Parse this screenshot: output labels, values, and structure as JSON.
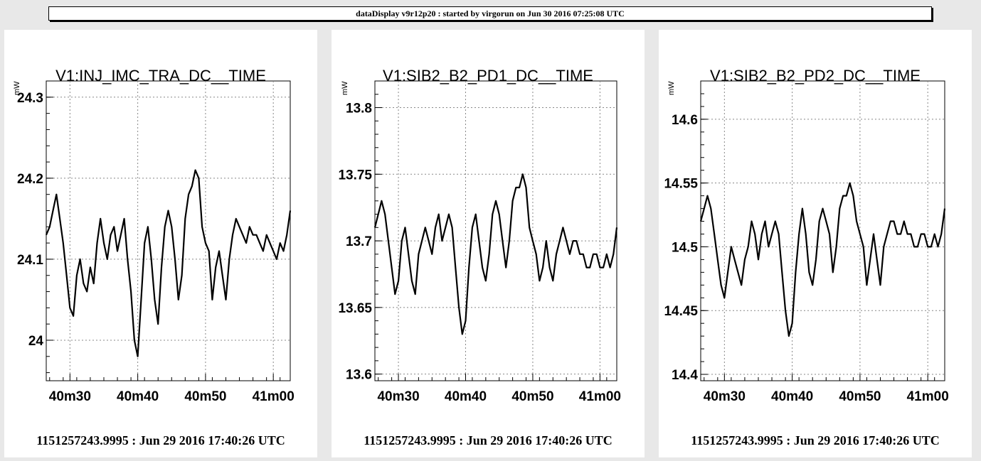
{
  "header": {
    "title": "dataDisplay v9r12p20 : started by virgorun on Jun 30 2016 07:25:08 UTC"
  },
  "chart_data": [
    {
      "type": "line",
      "title": "V1:INJ_IMC_TRA_DC__TIME",
      "ylabel": "mW",
      "footer": "1151257243.9995 : Jun 29 2016 17:40:26 UTC",
      "x_ticks": [
        "40m30",
        "40m40",
        "40m50",
        "41m00"
      ],
      "x_tick_seconds": [
        30,
        40,
        50,
        60
      ],
      "xlim": [
        26.5,
        62.5
      ],
      "y_ticks": [
        "24",
        "24.1",
        "24.2",
        "24.3"
      ],
      "y_tick_values": [
        24.0,
        24.1,
        24.2,
        24.3
      ],
      "ylim": [
        23.95,
        24.32
      ],
      "grid": true,
      "series": [
        {
          "x": [
            26.5,
            27.0,
            27.5,
            28.0,
            28.5,
            29.0,
            29.5,
            30.0,
            30.5,
            31.0,
            31.5,
            32.0,
            32.5,
            33.0,
            33.5,
            34.0,
            34.5,
            35.0,
            35.5,
            36.0,
            36.5,
            37.0,
            37.5,
            38.0,
            38.5,
            39.0,
            39.5,
            40.0,
            40.5,
            41.0,
            41.5,
            42.0,
            42.5,
            43.0,
            43.5,
            44.0,
            44.5,
            45.0,
            45.5,
            46.0,
            46.5,
            47.0,
            47.5,
            48.0,
            48.5,
            49.0,
            49.5,
            50.0,
            50.5,
            51.0,
            51.5,
            52.0,
            52.5,
            53.0,
            53.5,
            54.0,
            54.5,
            55.0,
            55.5,
            56.0,
            56.5,
            57.0,
            57.5,
            58.0,
            58.5,
            59.0,
            59.5,
            60.0,
            60.5,
            61.0,
            61.5,
            62.0,
            62.5
          ],
          "y": [
            24.13,
            24.14,
            24.16,
            24.18,
            24.15,
            24.12,
            24.08,
            24.04,
            24.03,
            24.08,
            24.1,
            24.07,
            24.06,
            24.09,
            24.07,
            24.12,
            24.15,
            24.12,
            24.1,
            24.13,
            24.14,
            24.11,
            24.13,
            24.15,
            24.1,
            24.06,
            24.0,
            23.98,
            24.05,
            24.12,
            24.14,
            24.1,
            24.05,
            24.02,
            24.09,
            24.14,
            24.16,
            24.14,
            24.1,
            24.05,
            24.08,
            24.15,
            24.18,
            24.19,
            24.21,
            24.2,
            24.14,
            24.12,
            24.11,
            24.05,
            24.09,
            24.11,
            24.08,
            24.05,
            24.1,
            24.13,
            24.15,
            24.14,
            24.13,
            24.12,
            24.14,
            24.13,
            24.13,
            24.12,
            24.11,
            24.13,
            24.12,
            24.11,
            24.1,
            24.12,
            24.11,
            24.13,
            24.16
          ]
        }
      ]
    },
    {
      "type": "line",
      "title": "V1:SIB2_B2_PD1_DC__TIME",
      "ylabel": "mW",
      "footer": "1151257243.9995 : Jun 29 2016 17:40:26 UTC",
      "x_ticks": [
        "40m30",
        "40m40",
        "40m50",
        "41m00"
      ],
      "x_tick_seconds": [
        30,
        40,
        50,
        60
      ],
      "xlim": [
        26.5,
        62.5
      ],
      "y_ticks": [
        "13.6",
        "13.65",
        "13.7",
        "13.75",
        "13.8"
      ],
      "y_tick_values": [
        13.6,
        13.65,
        13.7,
        13.75,
        13.8
      ],
      "ylim": [
        13.595,
        13.82
      ],
      "grid": true,
      "series": [
        {
          "x": [
            26.5,
            27.0,
            27.5,
            28.0,
            28.5,
            29.0,
            29.5,
            30.0,
            30.5,
            31.0,
            31.5,
            32.0,
            32.5,
            33.0,
            33.5,
            34.0,
            34.5,
            35.0,
            35.5,
            36.0,
            36.5,
            37.0,
            37.5,
            38.0,
            38.5,
            39.0,
            39.5,
            40.0,
            40.5,
            41.0,
            41.5,
            42.0,
            42.5,
            43.0,
            43.5,
            44.0,
            44.5,
            45.0,
            45.5,
            46.0,
            46.5,
            47.0,
            47.5,
            48.0,
            48.5,
            49.0,
            49.5,
            50.0,
            50.5,
            51.0,
            51.5,
            52.0,
            52.5,
            53.0,
            53.5,
            54.0,
            54.5,
            55.0,
            55.5,
            56.0,
            56.5,
            57.0,
            57.5,
            58.0,
            58.5,
            59.0,
            59.5,
            60.0,
            60.5,
            61.0,
            61.5,
            62.0,
            62.5
          ],
          "y": [
            13.71,
            13.72,
            13.73,
            13.72,
            13.7,
            13.68,
            13.66,
            13.67,
            13.7,
            13.71,
            13.69,
            13.67,
            13.66,
            13.69,
            13.7,
            13.71,
            13.7,
            13.69,
            13.71,
            13.72,
            13.7,
            13.71,
            13.72,
            13.71,
            13.68,
            13.65,
            13.63,
            13.64,
            13.68,
            13.71,
            13.72,
            13.7,
            13.68,
            13.67,
            13.69,
            13.72,
            13.73,
            13.72,
            13.7,
            13.68,
            13.7,
            13.73,
            13.74,
            13.74,
            13.75,
            13.74,
            13.71,
            13.7,
            13.69,
            13.67,
            13.68,
            13.7,
            13.68,
            13.67,
            13.69,
            13.7,
            13.71,
            13.7,
            13.69,
            13.7,
            13.7,
            13.69,
            13.69,
            13.68,
            13.68,
            13.69,
            13.69,
            13.68,
            13.68,
            13.69,
            13.68,
            13.69,
            13.71
          ]
        }
      ]
    },
    {
      "type": "line",
      "title": "V1:SIB2_B2_PD2_DC__TIME",
      "ylabel": "mW",
      "footer": "1151257243.9995 : Jun 29 2016 17:40:26 UTC",
      "x_ticks": [
        "40m30",
        "40m40",
        "40m50",
        "41m00"
      ],
      "x_tick_seconds": [
        30,
        40,
        50,
        60
      ],
      "xlim": [
        26.5,
        62.5
      ],
      "y_ticks": [
        "14.4",
        "14.45",
        "14.5",
        "14.55",
        "14.6"
      ],
      "y_tick_values": [
        14.4,
        14.45,
        14.5,
        14.55,
        14.6
      ],
      "ylim": [
        14.395,
        14.63
      ],
      "grid": true,
      "series": [
        {
          "x": [
            26.5,
            27.0,
            27.5,
            28.0,
            28.5,
            29.0,
            29.5,
            30.0,
            30.5,
            31.0,
            31.5,
            32.0,
            32.5,
            33.0,
            33.5,
            34.0,
            34.5,
            35.0,
            35.5,
            36.0,
            36.5,
            37.0,
            37.5,
            38.0,
            38.5,
            39.0,
            39.5,
            40.0,
            40.5,
            41.0,
            41.5,
            42.0,
            42.5,
            43.0,
            43.5,
            44.0,
            44.5,
            45.0,
            45.5,
            46.0,
            46.5,
            47.0,
            47.5,
            48.0,
            48.5,
            49.0,
            49.5,
            50.0,
            50.5,
            51.0,
            51.5,
            52.0,
            52.5,
            53.0,
            53.5,
            54.0,
            54.5,
            55.0,
            55.5,
            56.0,
            56.5,
            57.0,
            57.5,
            58.0,
            58.5,
            59.0,
            59.5,
            60.0,
            60.5,
            61.0,
            61.5,
            62.0,
            62.5
          ],
          "y": [
            14.52,
            14.53,
            14.54,
            14.53,
            14.51,
            14.49,
            14.47,
            14.46,
            14.48,
            14.5,
            14.49,
            14.48,
            14.47,
            14.49,
            14.5,
            14.52,
            14.51,
            14.49,
            14.51,
            14.52,
            14.5,
            14.51,
            14.52,
            14.51,
            14.48,
            14.45,
            14.43,
            14.44,
            14.48,
            14.51,
            14.53,
            14.51,
            14.48,
            14.47,
            14.49,
            14.52,
            14.53,
            14.52,
            14.51,
            14.48,
            14.5,
            14.53,
            14.54,
            14.54,
            14.55,
            14.54,
            14.52,
            14.51,
            14.5,
            14.47,
            14.49,
            14.51,
            14.49,
            14.47,
            14.5,
            14.51,
            14.52,
            14.52,
            14.51,
            14.51,
            14.52,
            14.51,
            14.51,
            14.5,
            14.5,
            14.51,
            14.51,
            14.5,
            14.5,
            14.51,
            14.5,
            14.51,
            14.53
          ]
        }
      ]
    }
  ]
}
